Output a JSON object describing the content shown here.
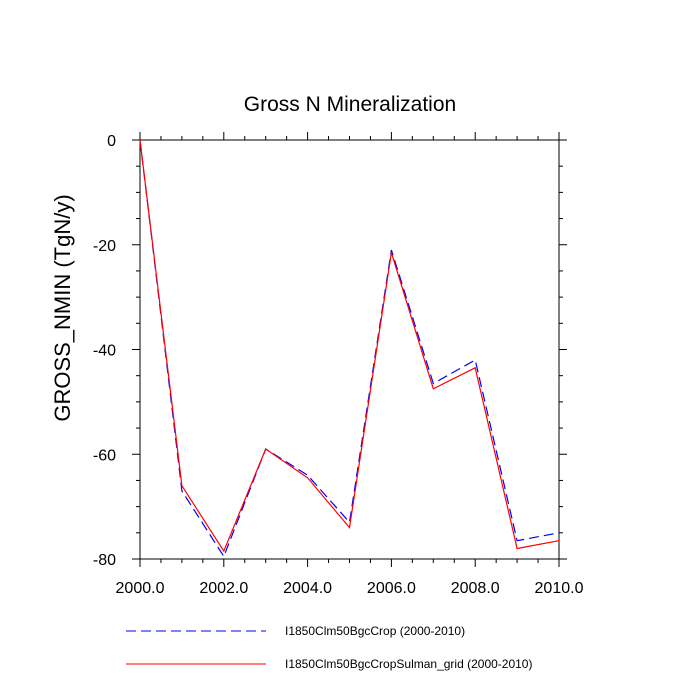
{
  "chart_data": {
    "type": "line",
    "title": "Gross N Mineralization",
    "xlabel": "",
    "ylabel": "GROSS_NMIN  (TgN/y)",
    "xlim": [
      2000,
      2010
    ],
    "ylim": [
      -80,
      0
    ],
    "x_ticks": [
      2000,
      2002,
      2004,
      2006,
      2008,
      2010
    ],
    "x_tick_labels": [
      "2000.0",
      "2002.0",
      "2004.0",
      "2006.0",
      "2008.0",
      "2010.0"
    ],
    "y_ticks": [
      0,
      -20,
      -40,
      -60,
      -80
    ],
    "y_tick_labels": [
      "0",
      "-20",
      "-40",
      "-60",
      "-80"
    ],
    "grid": false,
    "legend_position": "bottom",
    "x": [
      2000,
      2001,
      2002,
      2003,
      2004,
      2005,
      2006,
      2007,
      2008,
      2009,
      2010
    ],
    "series": [
      {
        "name": "I1850Clm50BgcCrop (2000-2010)",
        "color": "#0000ff",
        "style": "dashed",
        "values": [
          0,
          -67,
          -79.5,
          -59,
          -64,
          -73,
          -21,
          -46.5,
          -42,
          -76.5,
          -75
        ]
      },
      {
        "name": "I1850Clm50BgcCropSulman_grid (2000-2010)",
        "color": "#ff0000",
        "style": "solid",
        "values": [
          0,
          -66,
          -78.5,
          -59,
          -64.5,
          -74,
          -21.5,
          -47.5,
          -43.5,
          -78,
          -76.5
        ]
      }
    ]
  }
}
